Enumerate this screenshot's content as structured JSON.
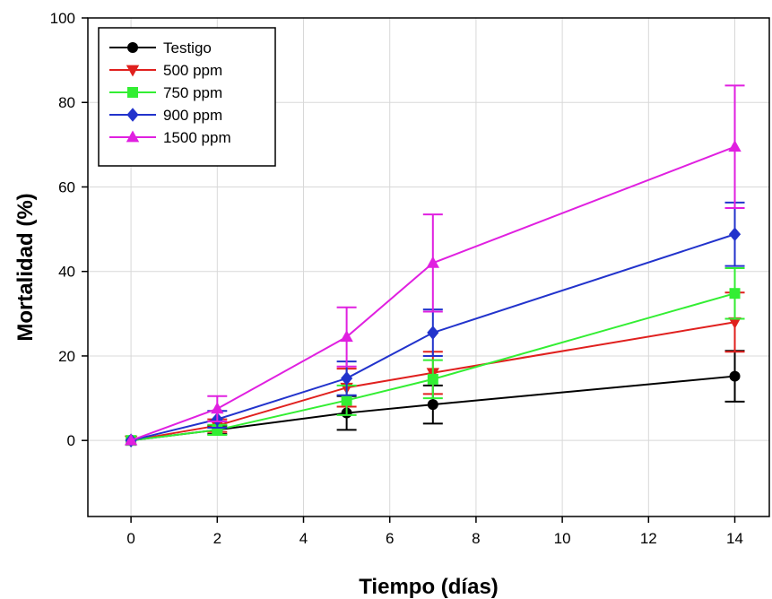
{
  "chart_data": {
    "type": "line",
    "xlabel": "Tiempo (días)",
    "ylabel": "Mortalidad (%)",
    "xlim": [
      -1,
      14.8
    ],
    "ylim": [
      -18,
      100
    ],
    "xticks": [
      0,
      2,
      4,
      6,
      8,
      10,
      12,
      14
    ],
    "yticks": [
      0,
      20,
      40,
      60,
      80,
      100
    ],
    "grid": true,
    "legend_position": "top-left",
    "x": [
      0,
      2,
      5,
      7,
      14
    ],
    "series": [
      {
        "name": "Testigo",
        "color": "#000000",
        "marker": "circle",
        "values": [
          0,
          2.5,
          6.5,
          8.5,
          15.2
        ],
        "error": [
          0,
          1.0,
          4.0,
          4.5,
          6.0
        ]
      },
      {
        "name": "500 ppm",
        "color": "#e0201e",
        "marker": "triangle-down",
        "values": [
          0,
          3.5,
          12.5,
          16.0,
          28.0
        ],
        "error": [
          0,
          1.5,
          4.5,
          5.0,
          7.0
        ]
      },
      {
        "name": "750 ppm",
        "color": "#33ee33",
        "marker": "square",
        "values": [
          0,
          2.5,
          9.5,
          14.5,
          34.8
        ],
        "error": [
          0,
          1.2,
          3.5,
          4.5,
          6.0
        ]
      },
      {
        "name": "900 ppm",
        "color": "#2233cc",
        "marker": "diamond",
        "values": [
          0,
          5.0,
          14.7,
          25.5,
          48.8
        ],
        "error": [
          0,
          2.0,
          4.0,
          5.5,
          7.5
        ]
      },
      {
        "name": "1500 ppm",
        "color": "#e020e0",
        "marker": "triangle-up",
        "values": [
          0,
          7.5,
          24.5,
          42.0,
          69.5
        ],
        "error": [
          0,
          3.0,
          7.0,
          11.5,
          14.5
        ]
      }
    ]
  }
}
